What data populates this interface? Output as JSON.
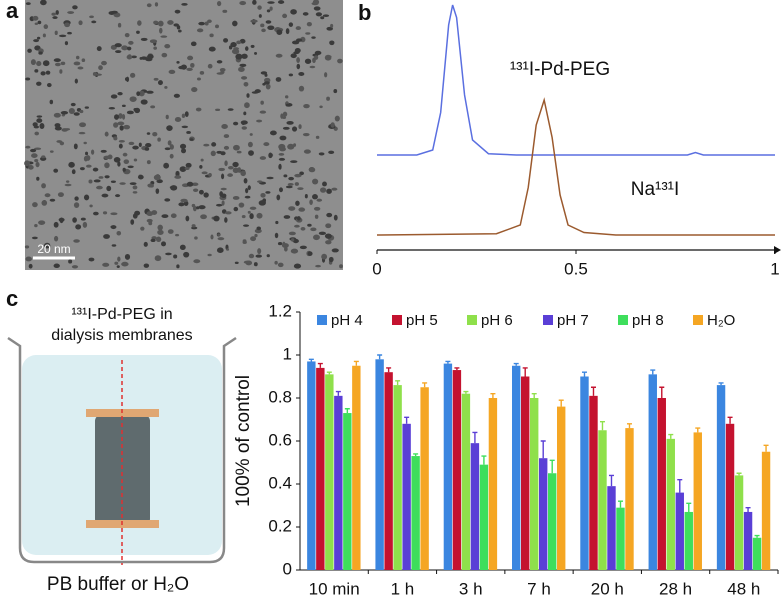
{
  "panel_labels": [
    "a",
    "b",
    "c"
  ],
  "scale_bar": "20 nm",
  "diagram": {
    "top_label": [
      "¹³¹I-Pd-PEG in",
      "dialysis membranes"
    ],
    "bottom_label": "PB buffer or H₂O"
  },
  "chart_data": [
    {
      "type": "line",
      "xlim": [
        0,
        1
      ],
      "xticks": [
        0,
        0.5,
        1
      ],
      "ylim": [
        0,
        1
      ],
      "series": [
        {
          "name": "¹³¹I-Pd-PEG",
          "color": "#5a6fe0",
          "x": [
            0,
            0.1,
            0.14,
            0.16,
            0.18,
            0.19,
            0.2,
            0.22,
            0.24,
            0.28,
            0.35,
            0.78,
            0.8,
            0.82,
            1
          ],
          "values": [
            0.38,
            0.38,
            0.4,
            0.55,
            0.9,
            0.98,
            0.93,
            0.62,
            0.44,
            0.385,
            0.38,
            0.38,
            0.39,
            0.38,
            0.38
          ]
        },
        {
          "name": "Na¹³¹I",
          "color": "#9b5a2e",
          "x": [
            0,
            0.3,
            0.36,
            0.38,
            0.4,
            0.42,
            0.44,
            0.46,
            0.48,
            0.52,
            0.6,
            1
          ],
          "values": [
            0.06,
            0.065,
            0.1,
            0.25,
            0.5,
            0.6,
            0.45,
            0.22,
            0.1,
            0.07,
            0.06,
            0.06
          ]
        }
      ]
    },
    {
      "type": "bar",
      "y_label": "100% of control",
      "categories": [
        "10 min",
        "1 h",
        "3 h",
        "7 h",
        "20 h",
        "28 h",
        "48 h"
      ],
      "ylim": [
        0,
        1.2
      ],
      "yticks": [
        0,
        0.2,
        0.4,
        0.6,
        0.8,
        1,
        1.2
      ],
      "series": [
        {
          "name": "pH 4",
          "color": "#3b86e0",
          "values": [
            0.97,
            0.98,
            0.96,
            0.95,
            0.9,
            0.91,
            0.86
          ],
          "errors": [
            0.01,
            0.02,
            0.01,
            0.01,
            0.02,
            0.02,
            0.01
          ]
        },
        {
          "name": "pH 5",
          "color": "#c4122f",
          "values": [
            0.94,
            0.92,
            0.93,
            0.9,
            0.81,
            0.8,
            0.68
          ],
          "errors": [
            0.02,
            0.02,
            0.01,
            0.04,
            0.04,
            0.05,
            0.03
          ]
        },
        {
          "name": "pH 6",
          "color": "#8fe04b",
          "values": [
            0.91,
            0.86,
            0.82,
            0.8,
            0.65,
            0.61,
            0.44
          ],
          "errors": [
            0.01,
            0.02,
            0.01,
            0.02,
            0.04,
            0.02,
            0.01
          ]
        },
        {
          "name": "pH 7",
          "color": "#5a3fd6",
          "values": [
            0.81,
            0.68,
            0.59,
            0.52,
            0.39,
            0.36,
            0.27
          ],
          "errors": [
            0.02,
            0.03,
            0.05,
            0.08,
            0.05,
            0.06,
            0.02
          ]
        },
        {
          "name": "pH 8",
          "color": "#3ede5c",
          "values": [
            0.73,
            0.53,
            0.49,
            0.45,
            0.29,
            0.27,
            0.15
          ],
          "errors": [
            0.02,
            0.01,
            0.04,
            0.06,
            0.03,
            0.04,
            0.01
          ]
        },
        {
          "name": "H₂O",
          "color": "#f5a623",
          "values": [
            0.95,
            0.85,
            0.8,
            0.76,
            0.66,
            0.64,
            0.55
          ],
          "errors": [
            0.02,
            0.02,
            0.02,
            0.03,
            0.02,
            0.02,
            0.03
          ]
        }
      ]
    }
  ]
}
